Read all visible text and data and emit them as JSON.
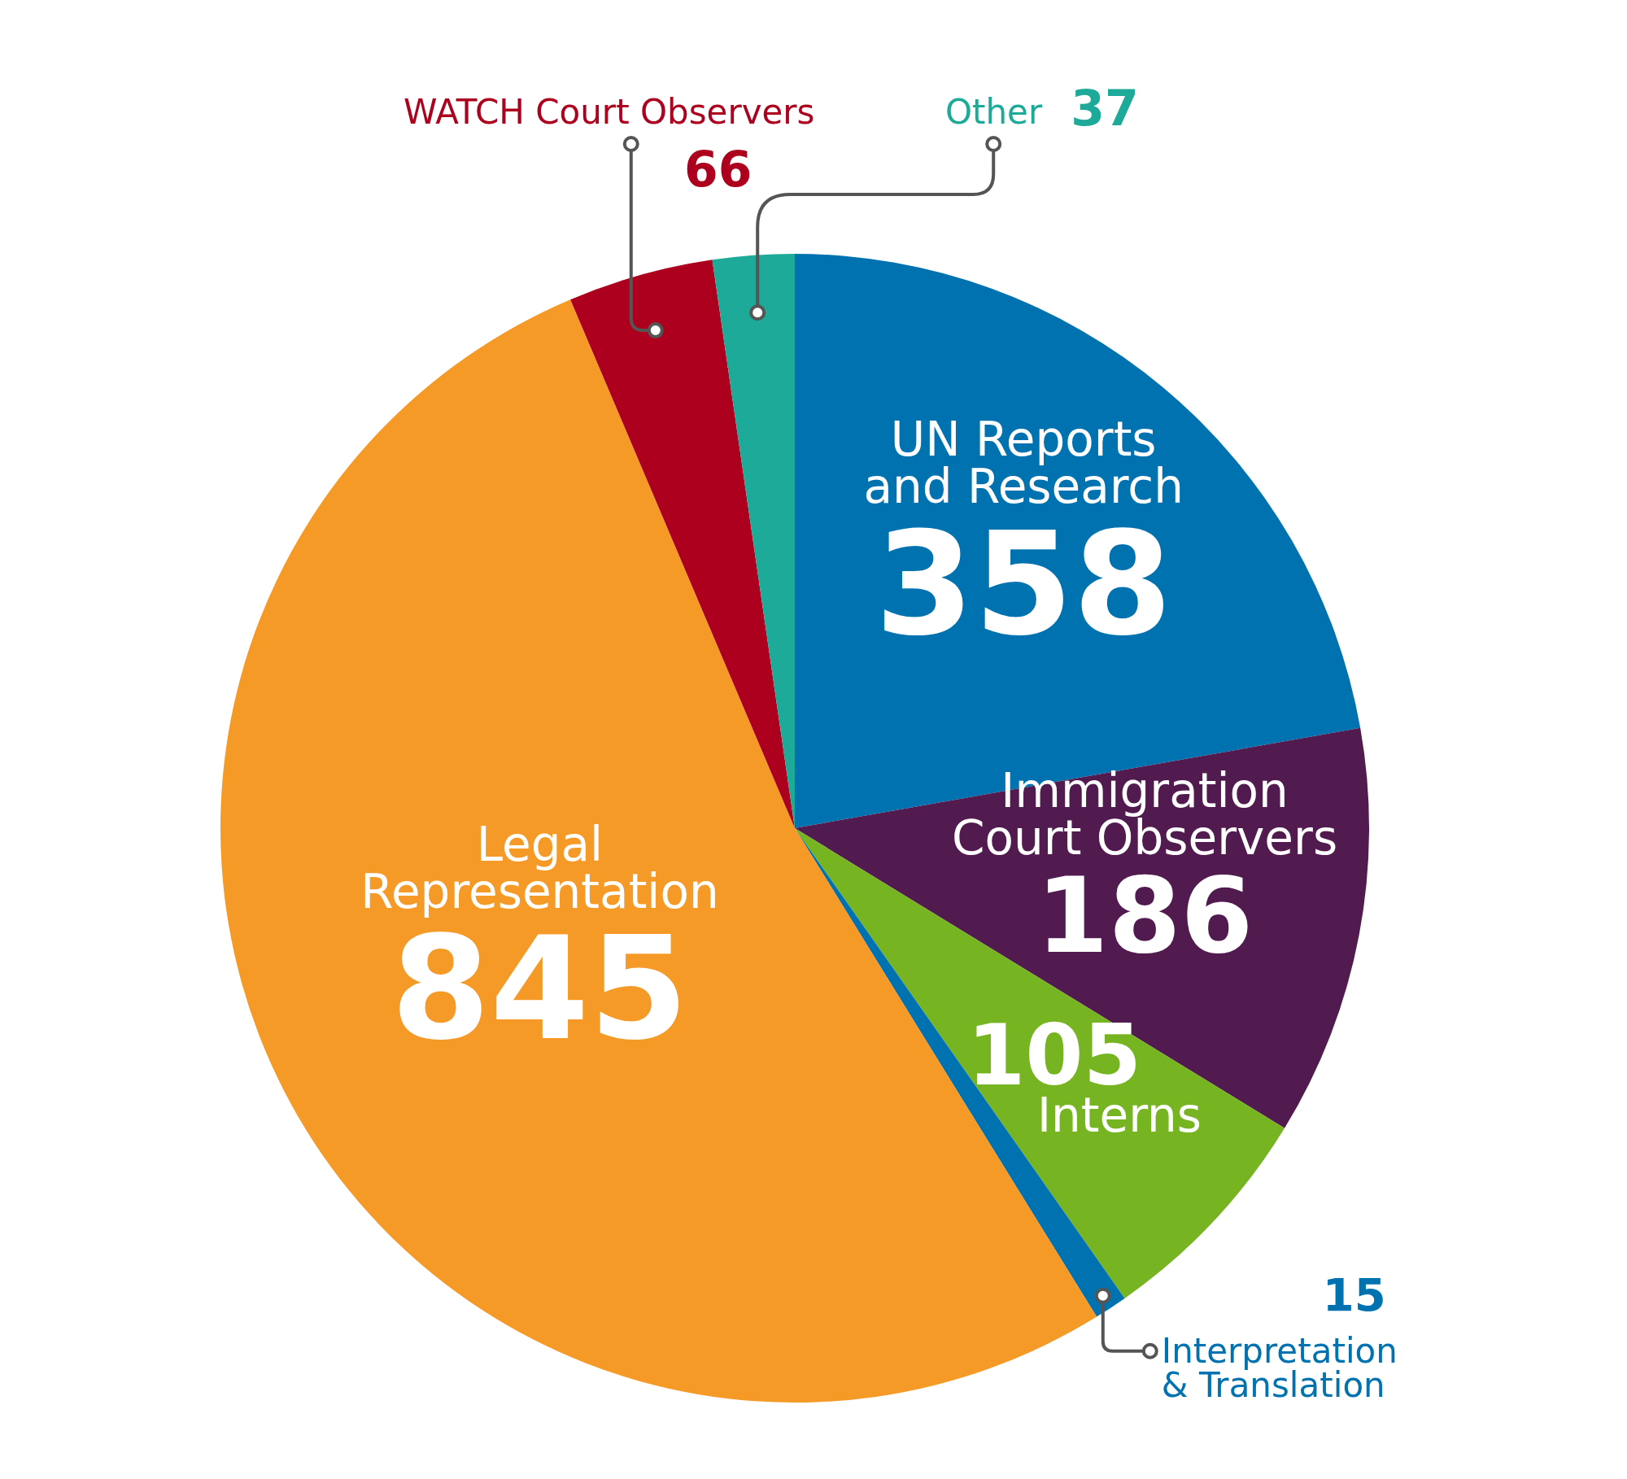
{
  "chart_data": {
    "type": "pie",
    "categories": [
      "UN Reports and Research",
      "Immigration Court Observers",
      "Interns",
      "Interpretation & Translation",
      "Legal Representation",
      "WATCH Court Observers",
      "Other"
    ],
    "values": [
      358,
      186,
      105,
      15,
      845,
      66,
      37
    ],
    "colors": [
      "#0072b0",
      "#521b50",
      "#76b421",
      "#0072b0",
      "#f59927",
      "#ad001e",
      "#1eaa99"
    ],
    "data_labels": true
  }
}
